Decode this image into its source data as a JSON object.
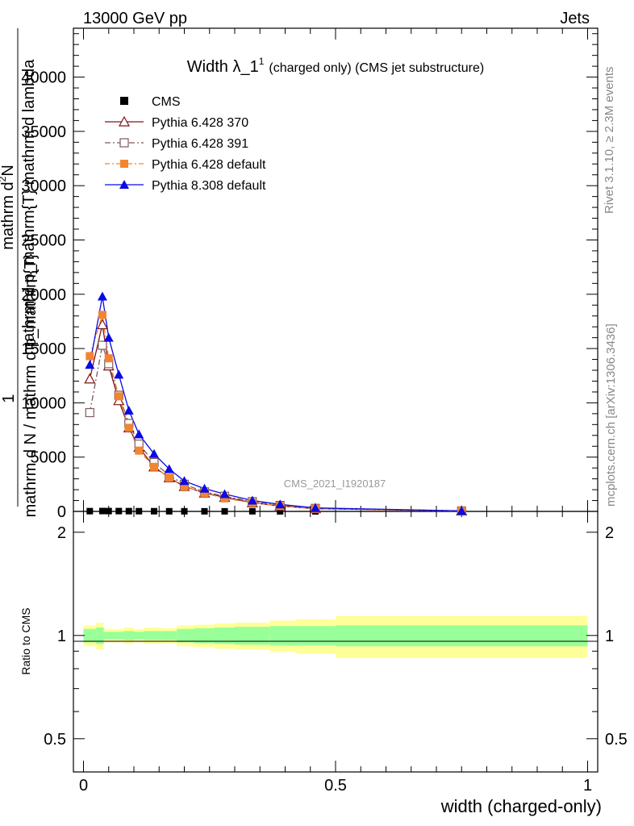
{
  "header": {
    "left": "13000 GeV pp",
    "right": "Jets"
  },
  "side_labels": {
    "rivet": "Rivet 3.1.10, ≥ 2.3M events",
    "mcplots": "mcplots.cern.ch [arXiv:1306.3436]"
  },
  "watermark": "CMS_2021_I1920187",
  "chart_data": {
    "type": "line",
    "title_main": "Width λ_1",
    "title_sup": "1",
    "title_paren": "(charged only) (CMS jet substructure)",
    "xlabel": "width (charged-only)",
    "ylabel_top_numerator": "mathrm d",
    "ylabel_top_sup": "2",
    "ylabel_top_N": "N",
    "ylabel_top_denominator": "mathrm d p_mathrm{T} mathrm d lambda",
    "ylabel_bot_one": "1",
    "ylabel_bot_denominator": "mathrm d N / mathrm d p_mathrm{T}",
    "ratio_ylabel": "Ratio to CMS",
    "xlim": [
      -0.02,
      1.02
    ],
    "ylim": [
      0,
      44500
    ],
    "ratio_ylim": [
      0.4,
      2.3
    ],
    "x_ticks": [
      "0",
      "0.5",
      "1"
    ],
    "x_tick_values": [
      0,
      0.5,
      1
    ],
    "y_ticks": [
      "0",
      "5000",
      "10000",
      "15000",
      "20000",
      "25000",
      "30000",
      "35000",
      "40000"
    ],
    "y_tick_values": [
      0,
      5000,
      10000,
      15000,
      20000,
      25000,
      30000,
      35000,
      40000
    ],
    "ratio_ticks": [
      "0.5",
      "1",
      "2"
    ],
    "ratio_tick_values": [
      0.5,
      1,
      2
    ],
    "x": [
      0.0125,
      0.0375,
      0.05,
      0.07,
      0.09,
      0.11,
      0.14,
      0.17,
      0.2,
      0.24,
      0.28,
      0.335,
      0.39,
      0.46,
      0.75
    ],
    "bin_edges": [
      0,
      0.025,
      0.04,
      0.06,
      0.08,
      0.1,
      0.12,
      0.155,
      0.185,
      0.22,
      0.26,
      0.3,
      0.37,
      0.42,
      0.5,
      1.0
    ],
    "ratio_green_band": [
      0.045,
      0.055,
      0.025,
      0.025,
      0.03,
      0.025,
      0.03,
      0.03,
      0.045,
      0.05,
      0.055,
      0.06,
      0.065,
      0.065,
      0.07
    ],
    "ratio_yellow_band": [
      0.07,
      0.09,
      0.045,
      0.045,
      0.055,
      0.045,
      0.055,
      0.05,
      0.07,
      0.075,
      0.085,
      0.09,
      0.105,
      0.115,
      0.14
    ],
    "series": [
      {
        "name": "CMS",
        "color": "#000000",
        "marker": "filled-square",
        "values": [
          25,
          35,
          30,
          30,
          25,
          20,
          18,
          14,
          12,
          10,
          9,
          15,
          6,
          3,
          1
        ]
      },
      {
        "name": "Pythia 6.428 370",
        "color": "#7f1414",
        "marker": "open-triangle",
        "dash": "",
        "values": [
          12200,
          17200,
          13400,
          10200,
          7700,
          5900,
          4100,
          3100,
          2300,
          1700,
          1300,
          800,
          500,
          250,
          40
        ]
      },
      {
        "name": "Pythia 6.428 391",
        "color": "#7f5a5a",
        "marker": "open-square",
        "dash": "7,3,2,3",
        "values": [
          9100,
          15300,
          13600,
          10700,
          8100,
          6200,
          4500,
          3300,
          2500,
          1800,
          1400,
          900,
          550,
          280,
          45
        ]
      },
      {
        "name": "Pythia 6.428 default",
        "color": "#f28530",
        "marker": "filled-square",
        "dash": "6,3,2,3",
        "values": [
          14300,
          18100,
          14100,
          10600,
          7700,
          5600,
          4100,
          3100,
          2300,
          1700,
          1200,
          800,
          500,
          250,
          40
        ]
      },
      {
        "name": "Pythia 8.308 default",
        "color": "#0a0ae6",
        "marker": "filled-triangle",
        "dash": "",
        "values": [
          13500,
          19800,
          16000,
          12600,
          9300,
          7100,
          5300,
          3900,
          2800,
          2100,
          1600,
          1000,
          650,
          320,
          50
        ]
      }
    ]
  }
}
